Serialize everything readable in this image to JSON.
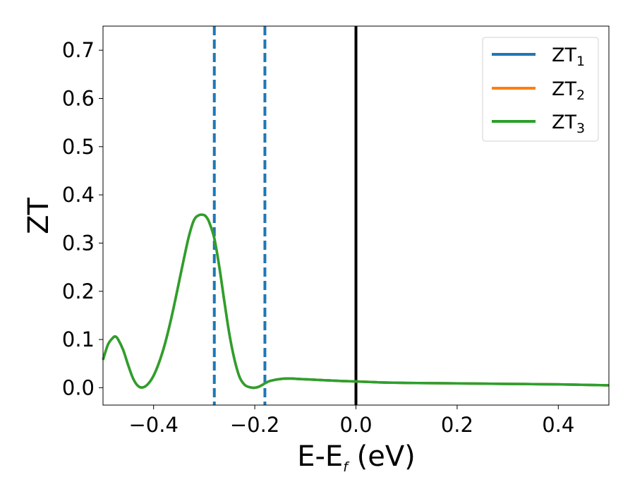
{
  "chart_data": {
    "type": "line",
    "xlabel": {
      "main": "E-E",
      "sub": "f",
      "suffix": " (eV)"
    },
    "ylabel": "ZT",
    "xlim": [
      -0.5,
      0.5
    ],
    "ylim": [
      -0.036,
      0.75
    ],
    "xticks": [
      -0.4,
      -0.2,
      0.0,
      0.2,
      0.4
    ],
    "xtick_labels": [
      "−0.4",
      "−0.2",
      "0.0",
      "0.2",
      "0.4"
    ],
    "yticks": [
      0.0,
      0.1,
      0.2,
      0.3,
      0.4,
      0.5,
      0.6,
      0.7
    ],
    "ytick_labels": [
      "0.0",
      "0.1",
      "0.2",
      "0.3",
      "0.4",
      "0.5",
      "0.6",
      "0.7"
    ],
    "grid": false,
    "legend_position": "top-right",
    "series": [
      {
        "name": "ZT",
        "subscript": "1",
        "color": "#1f77b4"
      },
      {
        "name": "ZT",
        "subscript": "2",
        "color": "#ff7f0e"
      },
      {
        "name": "ZT",
        "subscript": "3",
        "color": "#2ca02c"
      }
    ],
    "shared_curve": {
      "x": [
        -0.5,
        -0.49,
        -0.48,
        -0.475,
        -0.47,
        -0.46,
        -0.45,
        -0.44,
        -0.43,
        -0.42,
        -0.41,
        -0.4,
        -0.39,
        -0.38,
        -0.37,
        -0.36,
        -0.35,
        -0.34,
        -0.33,
        -0.32,
        -0.31,
        -0.3,
        -0.295,
        -0.29,
        -0.28,
        -0.27,
        -0.26,
        -0.25,
        -0.24,
        -0.23,
        -0.22,
        -0.21,
        -0.2,
        -0.19,
        -0.18,
        -0.17,
        -0.15,
        -0.13,
        -0.11,
        -0.09,
        -0.07,
        -0.05,
        -0.03,
        0.0,
        0.05,
        0.1,
        0.2,
        0.3,
        0.4,
        0.5
      ],
      "y": [
        0.058,
        0.09,
        0.104,
        0.106,
        0.1,
        0.078,
        0.046,
        0.018,
        0.003,
        0.001,
        0.009,
        0.025,
        0.05,
        0.082,
        0.122,
        0.168,
        0.218,
        0.268,
        0.315,
        0.348,
        0.358,
        0.358,
        0.353,
        0.343,
        0.31,
        0.25,
        0.178,
        0.11,
        0.058,
        0.022,
        0.006,
        0.001,
        0.0,
        0.003,
        0.009,
        0.014,
        0.018,
        0.019,
        0.018,
        0.017,
        0.016,
        0.015,
        0.014,
        0.013,
        0.011,
        0.01,
        0.009,
        0.008,
        0.007,
        0.005
      ]
    },
    "vlines": [
      {
        "x": -0.28,
        "style": "dashed",
        "color": "#1f77b4"
      },
      {
        "x": -0.18,
        "style": "dashed",
        "color": "#1f77b4"
      },
      {
        "x": 0.0,
        "style": "solid",
        "color": "#000000"
      }
    ]
  }
}
